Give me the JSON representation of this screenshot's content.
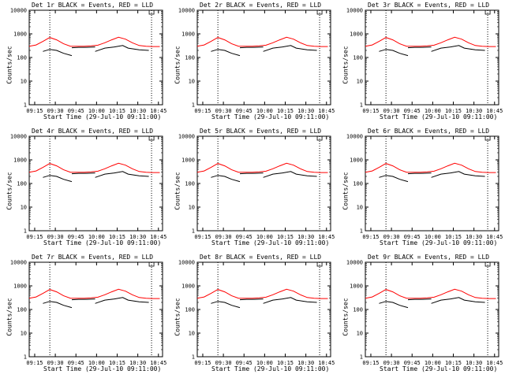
{
  "chart_data": {
    "type": "line",
    "layout": "3x3 grid of panels",
    "shared": {
      "xlabel": "Start Time (29-Jul-10 09:11:00)",
      "ylabel": "Counts/sec",
      "xticks": [
        "09:15",
        "09:30",
        "09:45",
        "10:00",
        "10:15",
        "10:30",
        "10:45"
      ],
      "yticks": [
        "1",
        "10",
        "100",
        "1000",
        "10000"
      ],
      "yscale": "log",
      "ylim": [
        1,
        10000
      ],
      "xlim_minutes": [
        0,
        97
      ],
      "vlines_minutes": [
        15,
        89
      ],
      "colors": {
        "events": "#000000",
        "lld": "#ff0000"
      }
    },
    "panels": [
      {
        "title": "Det 1r BLACK = Events, RED = LLD"
      },
      {
        "title": "Det 2r BLACK = Events, RED = LLD"
      },
      {
        "title": "Det 3r BLACK = Events, RED = LLD"
      },
      {
        "title": "Det 4r BLACK = Events, RED = LLD"
      },
      {
        "title": "Det 5r BLACK = Events, RED = LLD"
      },
      {
        "title": "Det 6r BLACK = Events, RED = LLD"
      },
      {
        "title": "Det 7r BLACK = Events, RED = LLD"
      },
      {
        "title": "Det 8r BLACK = Events, RED = LLD"
      },
      {
        "title": "Det 9r BLACK = Events, RED = LLD"
      }
    ],
    "series": [
      {
        "name": "LLD",
        "x_minutes": [
          0,
          5,
          10,
          15,
          20,
          25,
          30,
          35,
          40,
          45,
          50,
          55,
          60,
          65,
          70,
          75,
          80,
          85,
          90,
          95
        ],
        "values": [
          300,
          340,
          480,
          700,
          560,
          380,
          300,
          300,
          300,
          310,
          330,
          420,
          560,
          720,
          600,
          420,
          320,
          300,
          290,
          290
        ]
      },
      {
        "name": "Events",
        "segments": [
          {
            "x_minutes": [
              10,
              15,
              20,
              25,
              31
            ],
            "values": [
              180,
              220,
              200,
              150,
              120
            ]
          },
          {
            "x_minutes": [
              31,
              36,
              42,
              48
            ],
            "values": [
              260,
              270,
              270,
              280
            ]
          },
          {
            "x_minutes": [
              48,
              55,
              62,
              68,
              72,
              80,
              87
            ],
            "values": [
              180,
              250,
              280,
              320,
              250,
              210,
              200
            ]
          }
        ]
      }
    ]
  }
}
